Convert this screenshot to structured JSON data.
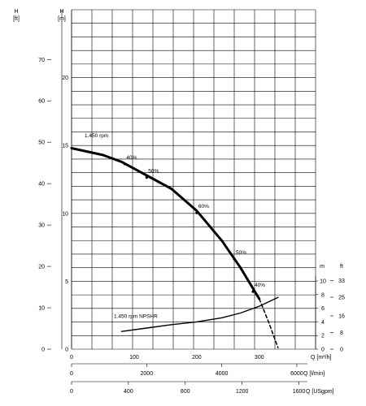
{
  "chart_data": {
    "type": "line",
    "title": "",
    "left_axis_ft": {
      "label": "H",
      "unit": "[ft]",
      "ticks": [
        "0",
        "10",
        "20",
        "30",
        "40",
        "50",
        "60",
        "70"
      ],
      "range": [
        0,
        82
      ]
    },
    "left_axis_m": {
      "label": "H",
      "unit": "[m]",
      "ticks": [
        "0",
        "5",
        "10",
        "15",
        "20"
      ],
      "range": [
        0,
        25
      ]
    },
    "right_axis_m": {
      "label": "m",
      "ticks": [
        "0",
        "2",
        "4",
        "6",
        "8",
        "10"
      ],
      "range": [
        0,
        10
      ]
    },
    "right_axis_ft": {
      "label": "ft",
      "ticks": [
        "0",
        "8",
        "16",
        "25",
        "33"
      ]
    },
    "x_axes": [
      {
        "unit": "Q [m³/h]",
        "ticks": [
          "0",
          "100",
          "200",
          "300"
        ],
        "range": [
          0,
          390
        ]
      },
      {
        "unit": "Q [l/min]",
        "ticks": [
          "0",
          "2000",
          "4000",
          "6000"
        ]
      },
      {
        "unit": "Q [USgpm]",
        "ticks": [
          "0",
          "400",
          "800",
          "1200",
          "1600"
        ]
      }
    ],
    "grid": true,
    "series": [
      {
        "name": "1.450 rpm",
        "axis": "H [m]",
        "style": "solid-thick",
        "x": [
          0,
          50,
          80,
          120,
          160,
          200,
          240,
          270,
          300
        ],
        "y": [
          14.8,
          14.3,
          13.8,
          12.8,
          11.8,
          10.2,
          8.0,
          6.0,
          3.7
        ]
      },
      {
        "name": "1.450 rpm",
        "axis": "H [m]",
        "style": "dashed",
        "x": [
          300,
          315,
          330
        ],
        "y": [
          3.7,
          2.0,
          0.1
        ]
      },
      {
        "name": "1.450 rpm NPSHR",
        "axis": "NPSHR [m]",
        "style": "solid",
        "x": [
          80,
          120,
          160,
          200,
          240,
          270,
          300,
          330
        ],
        "y": [
          2.6,
          3.1,
          3.6,
          4.0,
          4.6,
          5.3,
          6.3,
          7.6
        ]
      }
    ],
    "efficiency_labels": [
      {
        "text": "40%",
        "x": 85,
        "y": 14.0
      },
      {
        "text": "50%",
        "x": 120,
        "y": 13.0
      },
      {
        "text": "60%",
        "x": 200,
        "y": 10.4
      },
      {
        "text": "50%",
        "x": 260,
        "y": 7.0
      },
      {
        "text": "40%",
        "x": 290,
        "y": 4.6
      }
    ],
    "curve_labels": {
      "head": "1.450 rpm",
      "npshr": "1.450 rpm  NPSHR"
    }
  }
}
